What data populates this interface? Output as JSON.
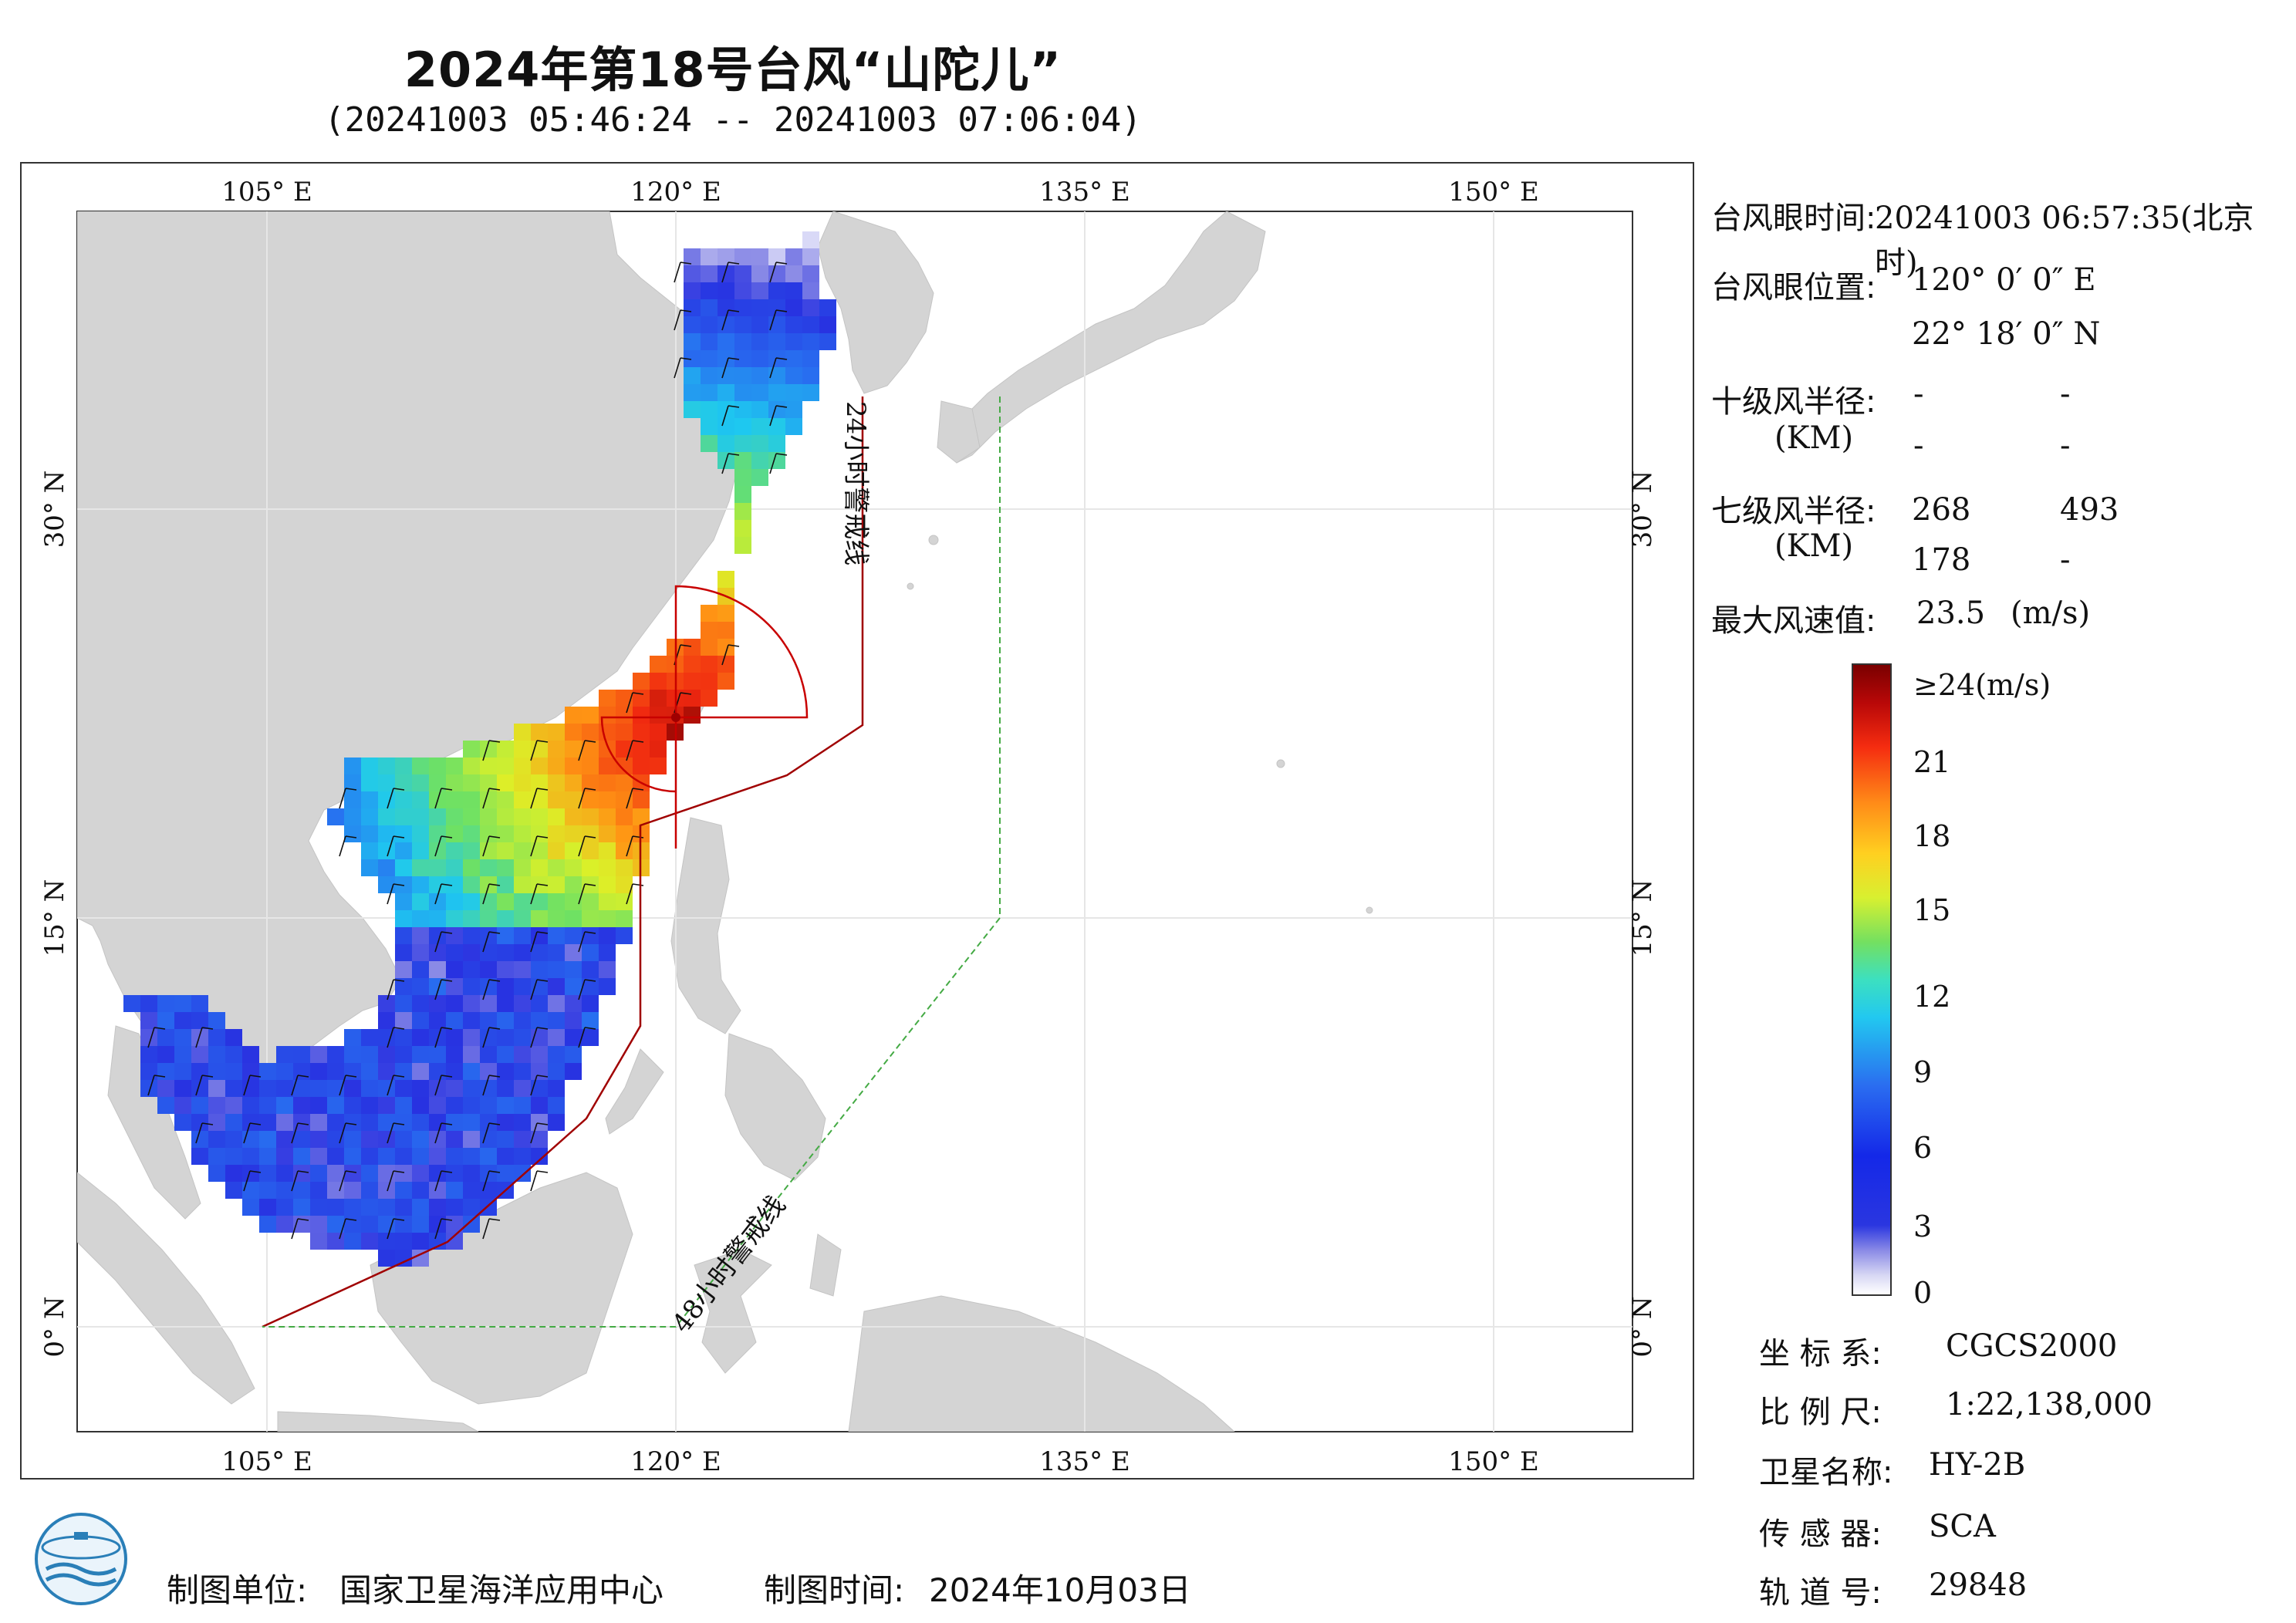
{
  "title": "2024年第18号台风“山陀儿”",
  "subtitle": "(20241003 05:46:24 -- 20241003 07:06:04)",
  "map": {
    "lon_ticks": [
      "105° E",
      "120° E",
      "135° E",
      "150° E"
    ],
    "lat_ticks": [
      "30° N",
      "15° N",
      "0° N"
    ],
    "warning_24h_label": "24小时警戒线",
    "warning_48h_label": "48小时警戒线",
    "colors": {
      "land": "#d4d4d4",
      "ocean": "#ffffff",
      "warning_24h": "#a00000",
      "warning_48h": "#44aa44",
      "wind_radius": "#c80000"
    }
  },
  "info": {
    "eye_time_label": "台风眼时间:",
    "eye_time_value": "20241003 06:57:35(北京时)",
    "eye_pos_label": "台风眼位置:",
    "eye_lon": "120° 0′ 0″ E",
    "eye_lat": "22° 18′ 0″ N",
    "r10_label": "十级风半径:",
    "r10_unit": "(KM)",
    "r10_values": [
      "-",
      "-",
      "-",
      "-"
    ],
    "r7_label": "七级风半径:",
    "r7_unit": "(KM)",
    "r7_values": [
      "268",
      "493",
      "178",
      "-"
    ],
    "max_wind_label": "最大风速值:",
    "max_wind_value": "23.5",
    "max_wind_unit": "(m/s)"
  },
  "colorbar": {
    "labels": [
      "≥24(m/s)",
      "21",
      "18",
      "15",
      "12",
      "9",
      "6",
      "3",
      "0"
    ]
  },
  "meta": {
    "crs_label": "坐 标 系:",
    "crs_value": "CGCS2000",
    "scale_label": "比 例 尺:",
    "scale_value": "1:22,138,000",
    "sat_label": "卫星名称:",
    "sat_value": "HY-2B",
    "sensor_label": "传 感 器:",
    "sensor_value": "SCA",
    "orbit_label": "轨 道 号:",
    "orbit_value": "29848"
  },
  "footer": {
    "maker_label": "制图单位:",
    "maker_value": "国家卫星海洋应用中心",
    "date_label": "制图时间:",
    "date_value": "2024年10月03日"
  }
}
